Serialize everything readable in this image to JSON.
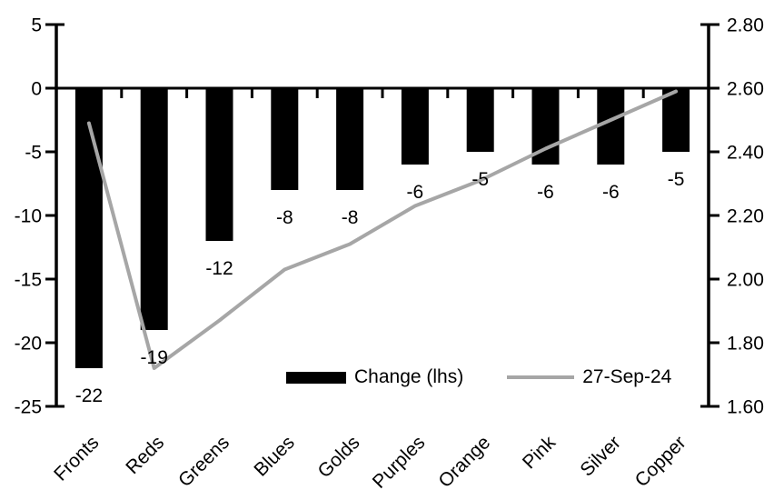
{
  "chart_data": {
    "type": "bar",
    "combo": "bar+line dual axis",
    "title": "",
    "categories": [
      "Fronts",
      "Reds",
      "Greens",
      "Blues",
      "Golds",
      "Purples",
      "Orange",
      "Pink",
      "Silver",
      "Copper"
    ],
    "series": [
      {
        "name": "Change (lhs)",
        "type": "bar",
        "axis": "left",
        "color": "#000000",
        "values": [
          -22,
          -19,
          -12,
          -8,
          -8,
          -6,
          -5,
          -6,
          -6,
          -5
        ],
        "data_labels": [
          "-22",
          "-19",
          "-12",
          "-8",
          "-8",
          "-6",
          "-5",
          "-6",
          "-6",
          "-5"
        ]
      },
      {
        "name": "27-Sep-24",
        "type": "line",
        "axis": "right",
        "color": "#a6a6a6",
        "values": [
          2.49,
          1.72,
          1.87,
          2.03,
          2.11,
          2.23,
          2.31,
          2.41,
          2.5,
          2.59
        ]
      }
    ],
    "left_axis": {
      "min": -25,
      "max": 5,
      "step": 5,
      "tick_labels": [
        "5",
        "0",
        "-5",
        "-10",
        "-15",
        "-20",
        "-25"
      ]
    },
    "right_axis": {
      "min": 1.6,
      "max": 2.8,
      "step": 0.2,
      "tick_labels": [
        "2.80",
        "2.60",
        "2.40",
        "2.20",
        "2.00",
        "1.80",
        "1.60"
      ]
    },
    "legend": {
      "position": "inside-bottom",
      "items": [
        {
          "label": "Change (lhs)",
          "swatch": "bar",
          "color": "#000000"
        },
        {
          "label": "27-Sep-24",
          "swatch": "line",
          "color": "#a6a6a6"
        }
      ]
    },
    "grid": false,
    "category_label_rotation_deg": -45
  },
  "colors": {
    "bar": "#000000",
    "line": "#a6a6a6",
    "axis": "#000000",
    "text": "#000000",
    "background": "#ffffff"
  }
}
